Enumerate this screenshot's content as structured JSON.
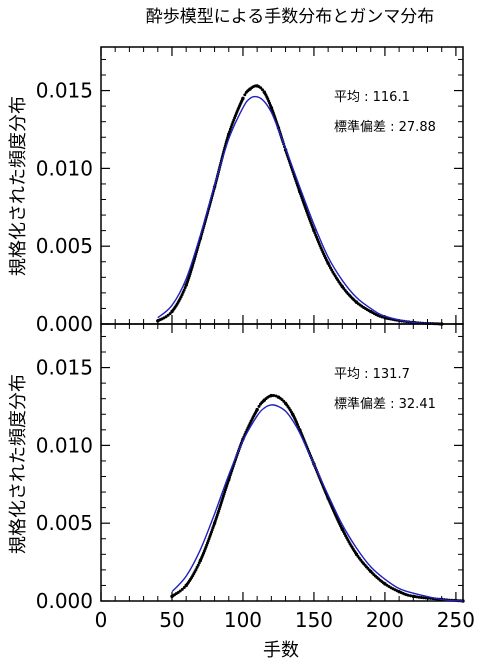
{
  "chart_data": {
    "type": "scatter",
    "title": "酔歩模型による手数分布とガンマ分布",
    "xlabel": "手数",
    "ylabel": "規格化された頻度分布",
    "xlim": [
      0,
      255
    ],
    "ylim": [
      0,
      0.0178
    ],
    "x_ticks": [
      0,
      50,
      100,
      150,
      200,
      250
    ],
    "x_tick_labels": [
      "0",
      "50",
      "100",
      "150",
      "200",
      "250"
    ],
    "y_ticks": [
      0,
      0.005,
      0.01,
      0.015
    ],
    "y_tick_labels": [
      "0.000",
      "0.005",
      "0.010",
      "0.015"
    ],
    "grid": false,
    "colors": {
      "dots": "#000000",
      "curve": "#2020c0",
      "axes": "#000000"
    },
    "panels": [
      {
        "stats": [
          {
            "label": "平均 : 116.1",
            "mean": 116.1
          },
          {
            "label": "標準偏差 : 27.88",
            "sd": 27.88
          }
        ],
        "series": [
          {
            "kind": "dots",
            "x": [
              40,
              50,
              60,
              70,
              80,
              90,
              100,
              105,
              110,
              115,
              120,
              125,
              130,
              140,
              150,
              160,
              170,
              180,
              190,
              200,
              220,
              240
            ],
            "y": [
              0.0002,
              0.0008,
              0.0025,
              0.0055,
              0.0088,
              0.0122,
              0.0145,
              0.0151,
              0.0153,
              0.0149,
              0.0139,
              0.0126,
              0.0112,
              0.0085,
              0.006,
              0.0039,
              0.0024,
              0.0014,
              0.0008,
              0.0004,
              0.0001,
              0.0
            ]
          },
          {
            "kind": "curve",
            "x": [
              40,
              50,
              60,
              70,
              80,
              90,
              100,
              105,
              110,
              115,
              120,
              125,
              130,
              140,
              150,
              160,
              170,
              180,
              190,
              200,
              220,
              240
            ],
            "y": [
              0.0004,
              0.0012,
              0.0029,
              0.0057,
              0.0089,
              0.0119,
              0.0139,
              0.0145,
              0.0146,
              0.0143,
              0.0136,
              0.0125,
              0.0113,
              0.0088,
              0.0064,
              0.0043,
              0.0028,
              0.0017,
              0.001,
              0.0005,
              0.0001,
              0.0
            ]
          }
        ]
      },
      {
        "stats": [
          {
            "label": "平均 : 131.7",
            "mean": 131.7
          },
          {
            "label": "標準偏差 : 32.41",
            "sd": 32.41
          }
        ],
        "series": [
          {
            "kind": "dots",
            "x": [
              50,
              60,
              70,
              80,
              90,
              100,
              110,
              115,
              120,
              125,
              130,
              135,
              140,
              150,
              160,
              170,
              180,
              190,
              200,
              210,
              220,
              240,
              255
            ],
            "y": [
              0.0003,
              0.001,
              0.0026,
              0.005,
              0.0078,
              0.0104,
              0.0123,
              0.0129,
              0.0132,
              0.0131,
              0.0127,
              0.012,
              0.011,
              0.0088,
              0.0066,
              0.0046,
              0.003,
              0.0019,
              0.0011,
              0.0006,
              0.0003,
              0.0001,
              0.0
            ]
          },
          {
            "kind": "curve",
            "x": [
              50,
              60,
              70,
              80,
              90,
              100,
              110,
              115,
              120,
              125,
              130,
              135,
              140,
              150,
              160,
              170,
              180,
              190,
              200,
              210,
              220,
              240,
              255
            ],
            "y": [
              0.0006,
              0.0016,
              0.0033,
              0.0056,
              0.0081,
              0.0103,
              0.0119,
              0.0124,
              0.0126,
              0.0125,
              0.0122,
              0.0116,
              0.0108,
              0.0088,
              0.0068,
              0.0049,
              0.0034,
              0.0022,
              0.0014,
              0.0008,
              0.0005,
              0.0001,
              0.0
            ]
          }
        ]
      }
    ]
  }
}
